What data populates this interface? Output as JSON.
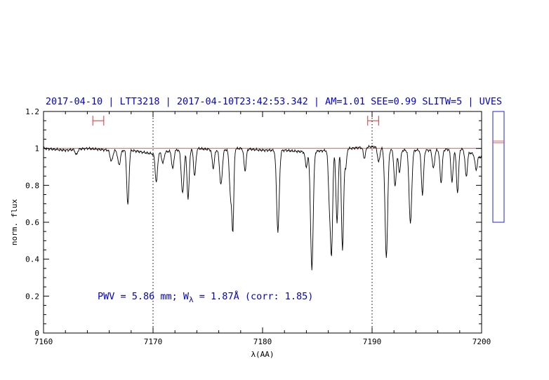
{
  "chart_data": {
    "type": "line",
    "title": "2017-04-10 | LTT3218 | 2017-04-10T23:42:53.342 | AM=1.01 SEE=0.99 SLITW=5 | UVES",
    "xlabel": "λ(AA)",
    "ylabel": "norm. flux",
    "xlim": [
      7160,
      7200
    ],
    "ylim": [
      0,
      1.2
    ],
    "xticks": [
      7160,
      7170,
      7180,
      7190,
      7200
    ],
    "yticks": [
      0,
      0.2,
      0.4,
      0.6,
      0.8,
      1,
      1.2
    ],
    "xtick_labels": [
      "7160",
      "7170",
      "7180",
      "7190",
      "7200"
    ],
    "ytick_labels": [
      "0",
      "0.2",
      "0.4",
      "0.6",
      "0.8",
      "1",
      "1.2"
    ],
    "continuum_level": 1.0,
    "reference_lines_x": [
      7170,
      7190
    ],
    "continuum_windows": [
      [
        7164.5,
        7165.5
      ],
      [
        7189.6,
        7190.6
      ]
    ],
    "continuum_window_y": 1.15,
    "annotation": "PWV = 5.86 mm; W_λ = 1.87Å (corr: 1.85)",
    "annotation_parts": {
      "prefix": "PWV = 5.86 mm; W",
      "subscript": "λ",
      "suffix": " = 1.87Å (corr: 1.85)"
    },
    "side_panel": {
      "ylim": [
        0,
        1.2
      ],
      "lines": [
        1.04,
        1.03
      ]
    },
    "spectrum_continuum": [
      [
        7160,
        1.0
      ],
      [
        7162,
        0.99
      ],
      [
        7164,
        1.0
      ],
      [
        7166,
        0.99
      ],
      [
        7168,
        0.99
      ],
      [
        7170,
        0.97
      ],
      [
        7172,
        0.99
      ],
      [
        7174,
        1.0
      ],
      [
        7176,
        0.99
      ],
      [
        7178,
        1.0
      ],
      [
        7180,
        0.99
      ],
      [
        7182,
        0.99
      ],
      [
        7184,
        0.98
      ],
      [
        7186,
        0.99
      ],
      [
        7188,
        1.0
      ],
      [
        7190,
        1.01
      ],
      [
        7192,
        0.99
      ],
      [
        7194,
        0.99
      ],
      [
        7196,
        0.99
      ],
      [
        7198,
        1.0
      ],
      [
        7200,
        0.95
      ]
    ],
    "absorption_lines": [
      {
        "x": 7163.0,
        "depth": 0.03,
        "width": 0.1
      },
      {
        "x": 7166.2,
        "depth": 0.06,
        "width": 0.12
      },
      {
        "x": 7166.9,
        "depth": 0.08,
        "width": 0.12
      },
      {
        "x": 7167.7,
        "depth": 0.3,
        "width": 0.1
      },
      {
        "x": 7170.3,
        "depth": 0.16,
        "width": 0.1
      },
      {
        "x": 7170.9,
        "depth": 0.06,
        "width": 0.1
      },
      {
        "x": 7171.8,
        "depth": 0.1,
        "width": 0.1
      },
      {
        "x": 7172.7,
        "depth": 0.24,
        "width": 0.12
      },
      {
        "x": 7173.2,
        "depth": 0.27,
        "width": 0.1
      },
      {
        "x": 7173.8,
        "depth": 0.15,
        "width": 0.1
      },
      {
        "x": 7175.5,
        "depth": 0.1,
        "width": 0.1
      },
      {
        "x": 7176.2,
        "depth": 0.19,
        "width": 0.12
      },
      {
        "x": 7177.1,
        "depth": 0.27,
        "width": 0.12
      },
      {
        "x": 7177.3,
        "depth": 0.38,
        "width": 0.08
      },
      {
        "x": 7178.4,
        "depth": 0.12,
        "width": 0.1
      },
      {
        "x": 7181.4,
        "depth": 0.44,
        "width": 0.12
      },
      {
        "x": 7184.0,
        "depth": 0.08,
        "width": 0.1
      },
      {
        "x": 7184.5,
        "depth": 0.64,
        "width": 0.12
      },
      {
        "x": 7186.1,
        "depth": 0.25,
        "width": 0.1
      },
      {
        "x": 7186.3,
        "depth": 0.54,
        "width": 0.1
      },
      {
        "x": 7186.8,
        "depth": 0.4,
        "width": 0.1
      },
      {
        "x": 7187.3,
        "depth": 0.55,
        "width": 0.1
      },
      {
        "x": 7187.6,
        "depth": 0.1,
        "width": 0.08
      },
      {
        "x": 7189.3,
        "depth": 0.06,
        "width": 0.1
      },
      {
        "x": 7190.6,
        "depth": 0.08,
        "width": 0.1
      },
      {
        "x": 7191.3,
        "depth": 0.59,
        "width": 0.12
      },
      {
        "x": 7192.1,
        "depth": 0.2,
        "width": 0.1
      },
      {
        "x": 7192.5,
        "depth": 0.12,
        "width": 0.1
      },
      {
        "x": 7193.5,
        "depth": 0.4,
        "width": 0.12
      },
      {
        "x": 7194.6,
        "depth": 0.24,
        "width": 0.1
      },
      {
        "x": 7195.6,
        "depth": 0.1,
        "width": 0.1
      },
      {
        "x": 7196.3,
        "depth": 0.18,
        "width": 0.1
      },
      {
        "x": 7197.3,
        "depth": 0.18,
        "width": 0.1
      },
      {
        "x": 7197.8,
        "depth": 0.24,
        "width": 0.1
      },
      {
        "x": 7198.6,
        "depth": 0.14,
        "width": 0.1
      },
      {
        "x": 7199.5,
        "depth": 0.08,
        "width": 0.1
      }
    ],
    "colors": {
      "title": "#0000dd",
      "annotation": "#0000dd",
      "spectrum": "#000000",
      "continuum": "#e06060",
      "windows": "#e03030",
      "side_panel_frame": "#2020e0",
      "reference_lines": "#000000"
    }
  }
}
